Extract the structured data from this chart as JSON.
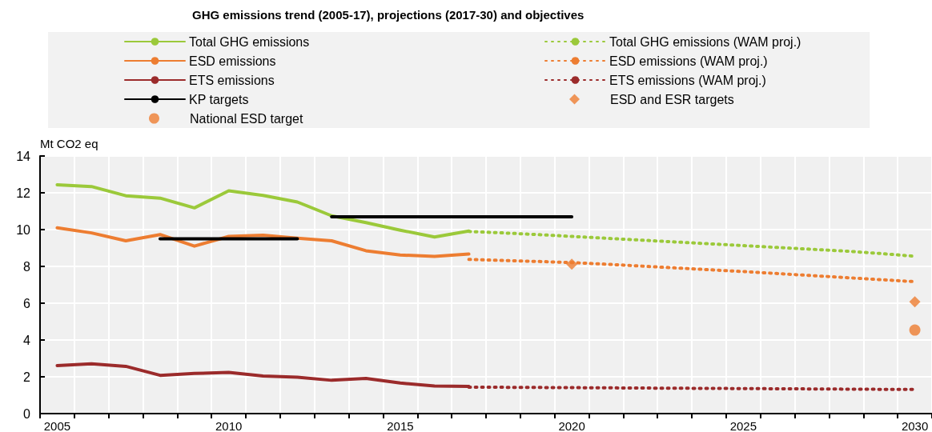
{
  "chart_data": {
    "type": "line",
    "title": "GHG emissions trend (2005-17), projections (2017-30) and objectives",
    "ylabel": "Mt CO2 eq",
    "categories": [
      "2005",
      null,
      null,
      null,
      null,
      "2010",
      null,
      null,
      null,
      null,
      "2015",
      null,
      null,
      null,
      null,
      "2020",
      null,
      null,
      null,
      null,
      "2025",
      null,
      null,
      null,
      null,
      "2030"
    ],
    "ylim": [
      0,
      14
    ],
    "yticks": [
      0,
      2,
      4,
      6,
      8,
      10,
      12,
      14
    ],
    "grid": true,
    "legend": "top",
    "marker": "none",
    "series": [
      {
        "name": "Total GHG emissions",
        "color": "#9bc93a",
        "line_style": "solid",
        "values": [
          12.44,
          12.34,
          11.84,
          11.71,
          11.18,
          12.11,
          11.86,
          11.5,
          10.75,
          10.38,
          9.97,
          9.6,
          9.92,
          null,
          null,
          null,
          null,
          null,
          null,
          null,
          null,
          null,
          null,
          null,
          null,
          null
        ]
      },
      {
        "name": "Total GHG emissions (WAM proj.)",
        "color": "#9bc93a",
        "line_style": "dotted",
        "values": [
          null,
          null,
          null,
          null,
          null,
          null,
          null,
          null,
          null,
          null,
          null,
          null,
          9.9,
          9.82,
          9.73,
          9.63,
          9.53,
          9.43,
          9.33,
          9.23,
          9.13,
          9.03,
          8.93,
          8.83,
          8.7,
          8.55
        ]
      },
      {
        "name": "ESD emissions",
        "color": "#ed7d31",
        "line_style": "solid",
        "values": [
          10.1,
          9.82,
          9.39,
          9.73,
          9.1,
          9.63,
          9.7,
          9.53,
          9.39,
          8.85,
          8.62,
          8.54,
          8.67,
          null,
          null,
          null,
          null,
          null,
          null,
          null,
          null,
          null,
          null,
          null,
          null,
          null
        ]
      },
      {
        "name": "ESD emissions (WAM proj.)",
        "color": "#ed7d31",
        "line_style": "dotted",
        "values": [
          null,
          null,
          null,
          null,
          null,
          null,
          null,
          null,
          null,
          null,
          null,
          null,
          8.38,
          8.32,
          8.27,
          8.21,
          8.12,
          8.02,
          7.92,
          7.82,
          7.72,
          7.61,
          7.5,
          7.39,
          7.28,
          7.17
        ]
      },
      {
        "name": "ETS emissions",
        "color": "#9b2b2b",
        "line_style": "solid",
        "values": [
          2.61,
          2.71,
          2.57,
          2.08,
          2.18,
          2.24,
          2.04,
          1.98,
          1.81,
          1.91,
          1.66,
          1.5,
          1.48,
          null,
          null,
          null,
          null,
          null,
          null,
          null,
          null,
          null,
          null,
          null,
          null,
          null
        ]
      },
      {
        "name": "ETS emissions (WAM proj.)",
        "color": "#9b2b2b",
        "line_style": "dotted",
        "values": [
          null,
          null,
          null,
          null,
          null,
          null,
          null,
          null,
          null,
          null,
          null,
          null,
          1.44,
          1.43,
          1.42,
          1.41,
          1.4,
          1.39,
          1.38,
          1.37,
          1.36,
          1.35,
          1.34,
          1.33,
          1.32,
          1.31
        ]
      },
      {
        "name": "KP targets",
        "color": "#000000",
        "line_style": "solid",
        "values": [
          null,
          null,
          null,
          9.5,
          9.5,
          9.5,
          9.5,
          9.5,
          null,
          null,
          null,
          null,
          null,
          null,
          null,
          null,
          null,
          null,
          null,
          null,
          null,
          null,
          null,
          null,
          null,
          null
        ]
      },
      {
        "type": "scatter",
        "marker": "diamond",
        "name": "ESD and ESR targets",
        "color": "#ed7d31",
        "values": [
          null,
          null,
          null,
          null,
          null,
          null,
          null,
          null,
          null,
          null,
          null,
          null,
          null,
          null,
          null,
          8.12,
          null,
          null,
          null,
          null,
          null,
          null,
          null,
          null,
          null,
          6.08
        ]
      },
      {
        "type": "scatter",
        "marker": "circle",
        "name": "National ESD target",
        "color": "#ed7d31",
        "values": [
          null,
          null,
          null,
          null,
          null,
          null,
          null,
          null,
          null,
          null,
          null,
          null,
          null,
          null,
          null,
          null,
          null,
          null,
          null,
          null,
          null,
          null,
          null,
          null,
          null,
          4.54
        ]
      },
      {
        "color": "#000000",
        "line_style": "solid",
        "values": [
          null,
          null,
          null,
          null,
          null,
          null,
          null,
          null,
          10.7,
          10.7,
          10.7,
          10.7,
          10.7,
          10.7,
          10.7,
          10.7,
          null,
          null,
          null,
          null,
          null,
          null,
          null,
          null,
          null,
          null
        ]
      }
    ]
  }
}
